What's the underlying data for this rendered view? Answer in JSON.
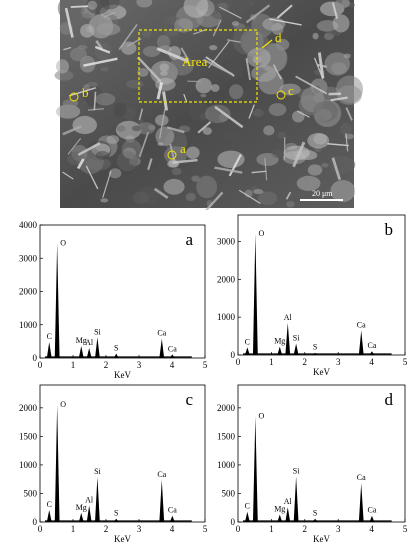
{
  "sem_image": {
    "labels": {
      "area": "Area",
      "a": "a",
      "b": "b",
      "c": "c",
      "d": "d"
    },
    "scale_bar": "20 μm",
    "highlight_color": "#f5e400"
  },
  "chart_data": [
    {
      "type": "bar",
      "panel_label": "a",
      "xlabel": "KeV",
      "xlim": [
        0,
        5
      ],
      "xticks": [
        0,
        1,
        2,
        3,
        4,
        5
      ],
      "ylim": [
        0,
        4000
      ],
      "yticks": [
        0,
        1000,
        2000,
        3000,
        4000
      ],
      "peaks": [
        {
          "element": "C",
          "x": 0.28,
          "y": 480
        },
        {
          "element": "O",
          "x": 0.52,
          "y": 3450
        },
        {
          "element": "Mg",
          "x": 1.25,
          "y": 360
        },
        {
          "element": "Al",
          "x": 1.49,
          "y": 300
        },
        {
          "element": "Si",
          "x": 1.74,
          "y": 620
        },
        {
          "element": "S",
          "x": 2.31,
          "y": 130
        },
        {
          "element": "Ca",
          "x": 3.69,
          "y": 580
        },
        {
          "element": "Ca",
          "x": 4.01,
          "y": 110
        }
      ]
    },
    {
      "type": "bar",
      "panel_label": "b",
      "xlabel": "KeV",
      "xlim": [
        0,
        5
      ],
      "xticks": [
        0,
        1,
        2,
        3,
        4,
        5
      ],
      "ylim": [
        0,
        3700
      ],
      "yticks": [
        0,
        1000,
        2000,
        3000
      ],
      "peaks": [
        {
          "element": "C",
          "x": 0.28,
          "y": 200
        },
        {
          "element": "O",
          "x": 0.52,
          "y": 3200
        },
        {
          "element": "Mg",
          "x": 1.25,
          "y": 220
        },
        {
          "element": "Al",
          "x": 1.49,
          "y": 850
        },
        {
          "element": "Si",
          "x": 1.74,
          "y": 300
        },
        {
          "element": "S",
          "x": 2.31,
          "y": 60
        },
        {
          "element": "Ca",
          "x": 3.69,
          "y": 650
        },
        {
          "element": "Ca",
          "x": 4.01,
          "y": 100
        }
      ]
    },
    {
      "type": "bar",
      "panel_label": "c",
      "xlabel": "KeV",
      "xlim": [
        0,
        5
      ],
      "xticks": [
        0,
        1,
        2,
        3,
        4,
        5
      ],
      "ylim": [
        0,
        2400
      ],
      "yticks": [
        0,
        500,
        1000,
        1500,
        2000
      ],
      "peaks": [
        {
          "element": "C",
          "x": 0.28,
          "y": 210
        },
        {
          "element": "O",
          "x": 0.52,
          "y": 2050
        },
        {
          "element": "Mg",
          "x": 1.25,
          "y": 160
        },
        {
          "element": "Al",
          "x": 1.49,
          "y": 290
        },
        {
          "element": "Si",
          "x": 1.74,
          "y": 790
        },
        {
          "element": "S",
          "x": 2.31,
          "y": 60
        },
        {
          "element": "Ca",
          "x": 3.69,
          "y": 740
        },
        {
          "element": "Ca",
          "x": 4.01,
          "y": 110
        }
      ]
    },
    {
      "type": "bar",
      "panel_label": "d",
      "xlabel": "KeV",
      "xlim": [
        0,
        5
      ],
      "xticks": [
        0,
        1,
        2,
        3,
        4,
        5
      ],
      "ylim": [
        0,
        2400
      ],
      "yticks": [
        0,
        500,
        1000,
        1500,
        2000
      ],
      "peaks": [
        {
          "element": "C",
          "x": 0.28,
          "y": 180
        },
        {
          "element": "O",
          "x": 0.52,
          "y": 1850
        },
        {
          "element": "Mg",
          "x": 1.25,
          "y": 130
        },
        {
          "element": "Al",
          "x": 1.49,
          "y": 260
        },
        {
          "element": "Si",
          "x": 1.74,
          "y": 800
        },
        {
          "element": "S",
          "x": 2.31,
          "y": 60
        },
        {
          "element": "Ca",
          "x": 3.69,
          "y": 680
        },
        {
          "element": "Ca",
          "x": 4.01,
          "y": 110
        }
      ]
    }
  ]
}
